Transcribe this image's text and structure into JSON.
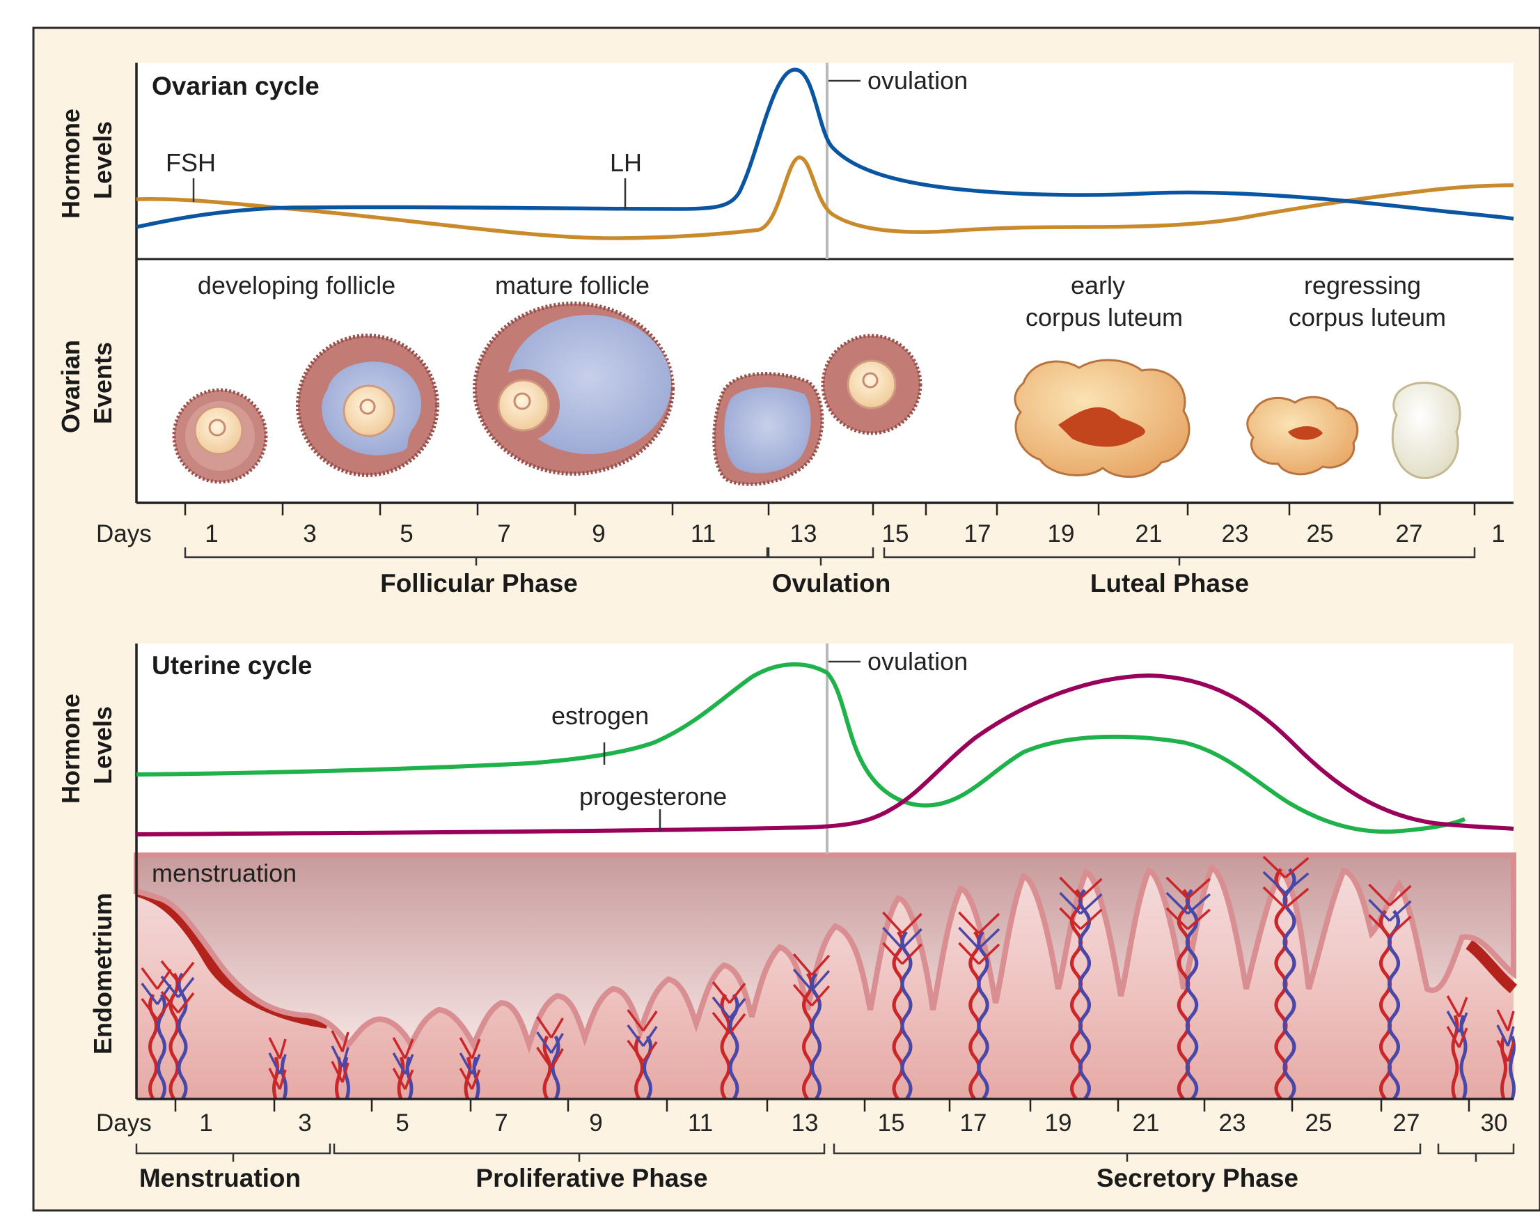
{
  "ovarian": {
    "title": "Ovarian cycle",
    "hormone_axis": [
      "Hormone",
      "Levels"
    ],
    "events_axis": [
      "Ovarian",
      "Events"
    ],
    "ovulation_label": "ovulation",
    "series": [
      {
        "name": "FSH",
        "color": "#c98a2c"
      },
      {
        "name": "LH",
        "color": "#0a55a2"
      }
    ],
    "event_labels": {
      "developing": "developing follicle",
      "mature": "mature follicle",
      "early": [
        "early",
        "corpus luteum"
      ],
      "regressing": [
        "regressing",
        "corpus luteum"
      ]
    },
    "days_label": "Days",
    "days": [
      "1",
      "3",
      "5",
      "7",
      "9",
      "11",
      "13",
      "15",
      "17",
      "19",
      "21",
      "23",
      "25",
      "27",
      "1"
    ],
    "phases": [
      "Follicular Phase",
      "Ovulation",
      "Luteal Phase"
    ]
  },
  "uterine": {
    "title": "Uterine cycle",
    "hormone_axis": [
      "Hormone",
      "Levels"
    ],
    "endometrium_axis": "Endometrium",
    "ovulation_label": "ovulation",
    "series": [
      {
        "name": "estrogen",
        "color": "#1fb24a"
      },
      {
        "name": "progesterone",
        "color": "#98005a"
      }
    ],
    "menstruation_label": "menstruation",
    "days_label": "Days",
    "days": [
      "1",
      "3",
      "5",
      "7",
      "9",
      "11",
      "13",
      "15",
      "17",
      "19",
      "21",
      "23",
      "25",
      "27",
      "30"
    ],
    "phases": [
      "Menstruation",
      "Proliferative Phase",
      "Secretory Phase"
    ]
  },
  "colors": {
    "background": "#fcf3e2",
    "frame": "#2a2a2a",
    "ovulation_line": "#b9b9b9",
    "follicle_wall": "#b9706b",
    "antrum": "#aab6db",
    "corpus": "#f2c98e",
    "endometrium": "#ecb7b4"
  }
}
